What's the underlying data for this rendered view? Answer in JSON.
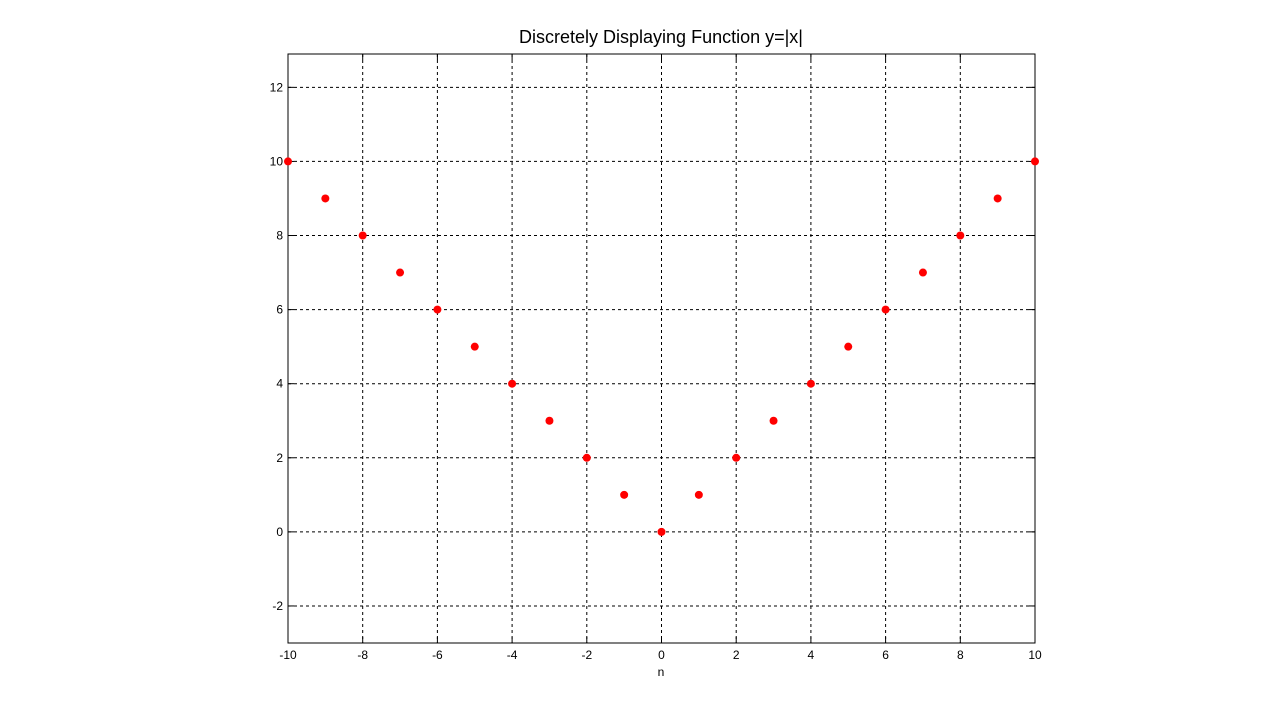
{
  "chart_data": {
    "type": "scatter",
    "title": "Discretely Displaying Function y=|x|",
    "xlabel": "n",
    "ylabel": "",
    "xlim": [
      -10,
      10
    ],
    "ylim": [
      -3,
      12.9
    ],
    "grid": true,
    "x_ticks": [
      -10,
      -8,
      -6,
      -4,
      -2,
      0,
      2,
      4,
      6,
      8,
      10
    ],
    "y_ticks": [
      -2,
      0,
      2,
      4,
      6,
      8,
      10,
      12
    ],
    "marker_color": "#ff0000",
    "series": [
      {
        "x": [
          -10,
          -9,
          -8,
          -7,
          -6,
          -5,
          -4,
          -3,
          -2,
          -1,
          0,
          1,
          2,
          3,
          4,
          5,
          6,
          7,
          8,
          9,
          10
        ],
        "y": [
          10,
          9,
          8,
          7,
          6,
          5,
          4,
          3,
          2,
          1,
          0,
          1,
          2,
          3,
          4,
          5,
          6,
          7,
          8,
          9,
          10
        ]
      }
    ]
  }
}
